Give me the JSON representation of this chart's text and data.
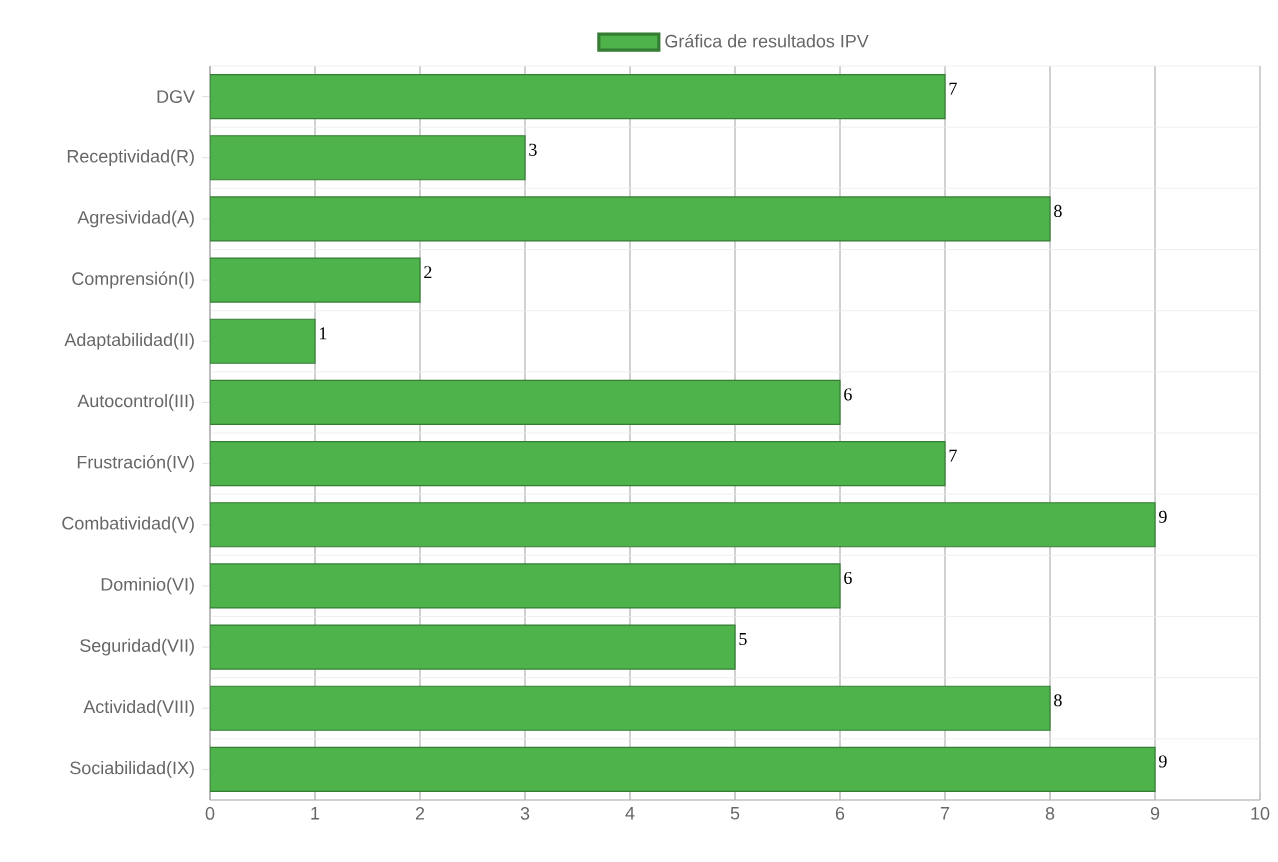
{
  "chart_data": {
    "type": "bar",
    "orientation": "horizontal",
    "categories": [
      "DGV",
      "Receptividad(R)",
      "Agresividad(A)",
      "Comprensión(I)",
      "Adaptabilidad(II)",
      "Autocontrol(III)",
      "Frustración(IV)",
      "Combatividad(V)",
      "Dominio(VI)",
      "Seguridad(VII)",
      "Actividad(VIII)",
      "Sociabilidad(IX)"
    ],
    "series": [
      {
        "name": "Gráfica de resultados IPV",
        "color": "#4db34a",
        "values": [
          7,
          3,
          8,
          2,
          1,
          6,
          7,
          9,
          6,
          5,
          8,
          9
        ]
      }
    ],
    "xlim": [
      0,
      10
    ],
    "xticks": [
      0,
      1,
      2,
      3,
      4,
      5,
      6,
      7,
      8,
      9,
      10
    ],
    "grid": true,
    "legend": "top",
    "data_labels": true
  }
}
